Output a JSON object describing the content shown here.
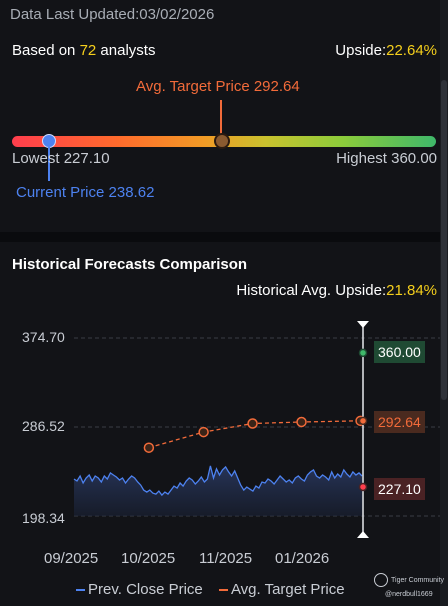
{
  "header": {
    "data_updated": "Data Last Updated:03/02/2026",
    "analysts_prefix": "Based on ",
    "analysts_count": "72",
    "analysts_suffix": " analysts",
    "upside_label": "Upside:",
    "upside_value": "22.64%"
  },
  "target_bar": {
    "avg_target_label": "Avg. Target Price 292.64",
    "lowest_label": "Lowest 227.10",
    "highest_label": "Highest 360.00",
    "current_label": "Current Price 238.62",
    "lowest": 227.1,
    "highest": 360.0,
    "current": 238.62,
    "avg_target": 292.64
  },
  "history": {
    "title": "Historical Forecasts Comparison",
    "hist_upside_label": "Historical Avg. Upside:",
    "hist_upside_value": "21.84%",
    "badges": {
      "high": "360.00",
      "avg": "292.64",
      "low": "227.10"
    },
    "legend": {
      "prev_close": "Prev. Close Price",
      "avg_target": "Avg. Target Price"
    }
  },
  "watermark": {
    "brand": "Tiger Community",
    "user": "@nerdbull1669"
  },
  "colors": {
    "accent_yellow": "#f5cf1c",
    "orange": "#f26b3a",
    "blue": "#4d82f0",
    "green": "#3fb86a",
    "red": "#ff3e4d"
  },
  "chart_data": {
    "type": "line",
    "title": "",
    "xlabel": "",
    "ylabel": "",
    "y_ticks": [
      "374.70",
      "286.52",
      "198.34"
    ],
    "x_ticks": [
      "09/2025",
      "10/2025",
      "11/2025",
      "01/2026"
    ],
    "ylim": [
      198.34,
      374.7
    ],
    "series": [
      {
        "name": "Prev. Close Price",
        "kind": "area",
        "values": [
          235,
          233,
          238,
          231,
          236,
          239,
          233,
          238,
          236,
          232,
          238,
          235,
          241,
          239,
          237,
          234,
          236,
          231,
          235,
          238,
          236,
          232,
          229,
          224,
          222,
          224,
          221,
          220,
          223,
          219,
          222,
          220,
          224,
          228,
          226,
          231,
          228,
          233,
          236,
          234,
          230,
          233,
          237,
          232,
          235,
          248,
          236,
          245,
          239,
          244,
          247,
          242,
          238,
          243,
          236,
          229,
          224,
          227,
          225,
          223,
          228,
          226,
          232,
          231,
          235,
          233,
          230,
          234,
          238,
          235,
          232,
          234,
          231,
          236,
          238,
          235,
          233,
          239,
          242,
          244,
          238,
          236,
          239,
          237,
          234,
          242,
          236,
          240,
          237,
          244,
          240,
          237,
          242,
          239,
          241,
          238
        ]
      },
      {
        "name": "Avg. Target Price",
        "kind": "dashed-points",
        "points": [
          {
            "t": 0.26,
            "v": 266.0
          },
          {
            "t": 0.45,
            "v": 281.5
          },
          {
            "t": 0.62,
            "v": 290.0
          },
          {
            "t": 0.79,
            "v": 291.5
          },
          {
            "t": 0.995,
            "v": 292.64
          }
        ]
      }
    ],
    "markers": {
      "high": 360.0,
      "avg": 292.64,
      "low": 227.1
    }
  }
}
